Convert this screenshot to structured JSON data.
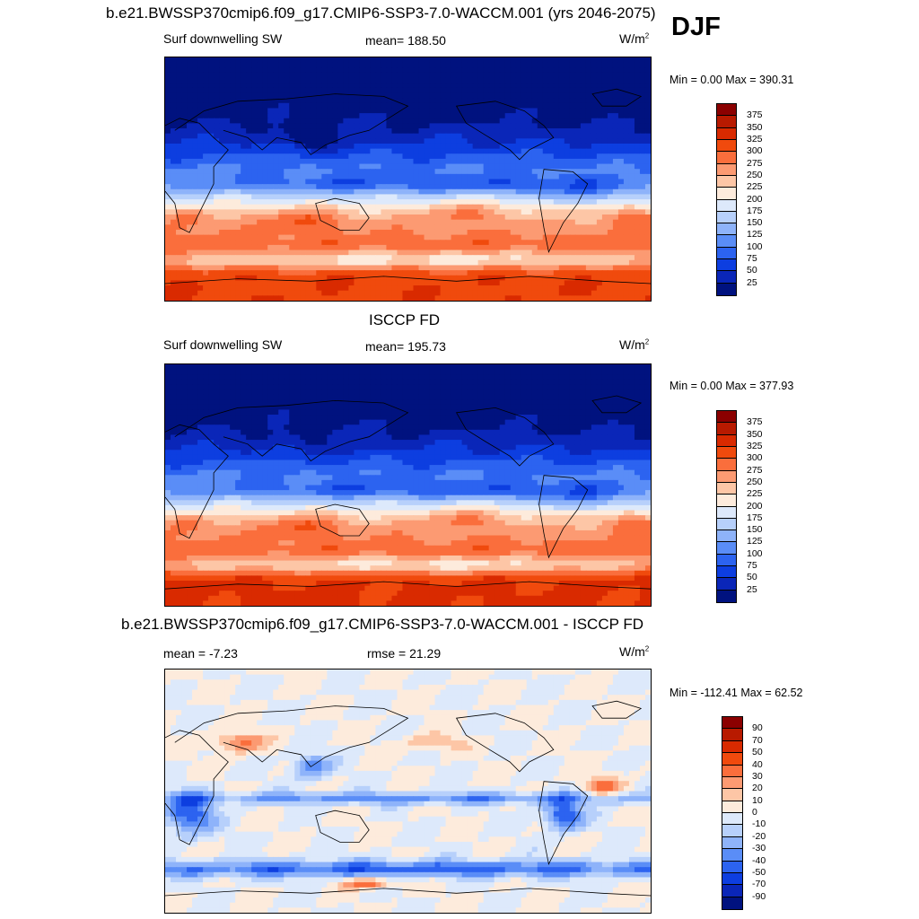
{
  "season": "DJF",
  "units_base": "W/m",
  "units_exp": "2",
  "panels": [
    {
      "id": "model",
      "title": "b.e21.BWSSP370cmip6.f09_g17.CMIP6-SSP3-7.0-WACCM.001 (yrs 2046-2075)",
      "variable": "Surf downwelling SW",
      "stat": "mean= 188.50",
      "minmax": "Min =   0.00 Max = 390.31",
      "levels": [
        "375",
        "350",
        "325",
        "300",
        "275",
        "250",
        "225",
        "200",
        "175",
        "150",
        "125",
        "100",
        "75",
        "50",
        "25"
      ],
      "colors": [
        "#8b0000",
        "#b81a00",
        "#d92a00",
        "#f04a0d",
        "#fa6e3c",
        "#fc9a72",
        "#fdc6a6",
        "#fdebdc",
        "#dde9fb",
        "#b7d0fb",
        "#8eb3fa",
        "#5a8df7",
        "#2c63f0",
        "#0d3ee0",
        "#0a26b8",
        "#00127f"
      ]
    },
    {
      "id": "obs",
      "title": "ISCCP FD",
      "variable": "Surf downwelling SW",
      "stat": "mean= 195.73",
      "minmax": "Min =   0.00 Max = 377.93",
      "levels": [
        "375",
        "350",
        "325",
        "300",
        "275",
        "250",
        "225",
        "200",
        "175",
        "150",
        "125",
        "100",
        "75",
        "50",
        "25"
      ],
      "colors": [
        "#8b0000",
        "#b81a00",
        "#d92a00",
        "#f04a0d",
        "#fa6e3c",
        "#fc9a72",
        "#fdc6a6",
        "#fdebdc",
        "#dde9fb",
        "#b7d0fb",
        "#8eb3fa",
        "#5a8df7",
        "#2c63f0",
        "#0d3ee0",
        "#0a26b8",
        "#00127f"
      ]
    },
    {
      "id": "diff",
      "title": "b.e21.BWSSP370cmip6.f09_g17.CMIP6-SSP3-7.0-WACCM.001 - ISCCP FD",
      "stat_mean": "mean =  -7.23",
      "stat_rmse": "rmse =  21.29",
      "minmax": "Min = -112.41 Max =  62.52",
      "levels": [
        "90",
        "70",
        "50",
        "40",
        "30",
        "20",
        "10",
        "0",
        "-10",
        "-20",
        "-30",
        "-40",
        "-50",
        "-70",
        "-90"
      ],
      "colors": [
        "#8b0000",
        "#b81a00",
        "#d92a00",
        "#f04a0d",
        "#fa6e3c",
        "#fc9a72",
        "#fdc6a6",
        "#fdebdc",
        "#dde9fb",
        "#b7d0fb",
        "#8eb3fa",
        "#5a8df7",
        "#2c63f0",
        "#0d3ee0",
        "#0a26b8",
        "#00127f"
      ]
    }
  ]
}
